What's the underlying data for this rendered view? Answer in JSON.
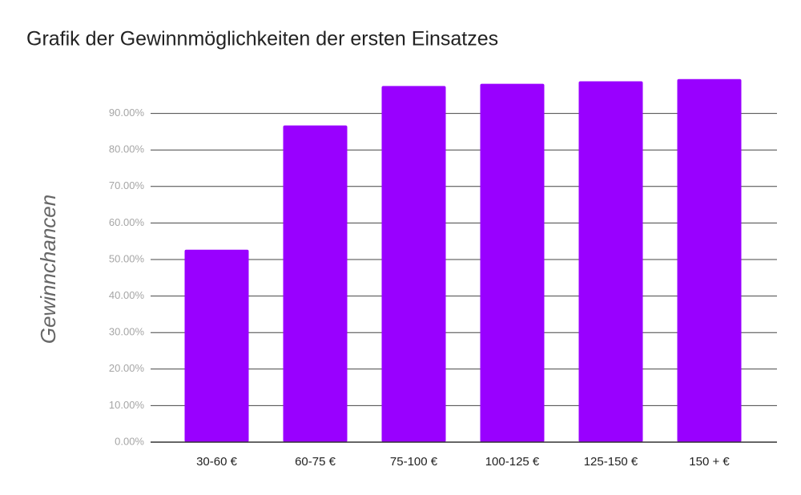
{
  "chart_data": {
    "type": "bar",
    "title": "Grafik der Gewinnmöglichkeiten der ersten Einsatzes",
    "y_label": "Gewinnchancen",
    "categories": [
      "30-60 €",
      "60-75 €",
      "75-100 €",
      "100-125 €",
      "125-150 €",
      "150 + €"
    ],
    "values": [
      52.7,
      86.7,
      97.5,
      98.1,
      98.8,
      99.4
    ],
    "color": "#9900ff",
    "ylim": [
      0,
      100
    ],
    "yticks": [
      {
        "value": 0,
        "label": "0.00%"
      },
      {
        "value": 10,
        "label": "10.00%"
      },
      {
        "value": 20,
        "label": "20.00%"
      },
      {
        "value": 30,
        "label": "30.00%"
      },
      {
        "value": 40,
        "label": "40.00%"
      },
      {
        "value": 50,
        "label": "50.00%"
      },
      {
        "value": 60,
        "label": "60.00%"
      },
      {
        "value": 70,
        "label": "70.00%"
      },
      {
        "value": 80,
        "label": "80.00%"
      },
      {
        "value": 90,
        "label": "90.00%"
      }
    ],
    "grid": true
  }
}
